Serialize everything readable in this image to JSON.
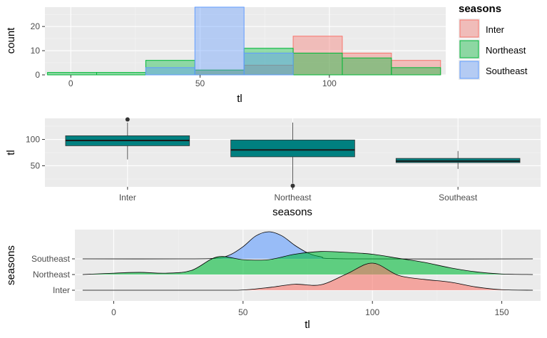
{
  "colors": {
    "Inter": "#F8766D",
    "Northeast": "#00BA38",
    "Southeast": "#619CFF",
    "box_fill": "#008080",
    "panel_bg": "#EBEBEB"
  },
  "chart_data": [
    {
      "type": "histogram",
      "xlabel": "tl",
      "ylabel": "count",
      "xlim": [
        -10,
        145
      ],
      "ylim": [
        0,
        28
      ],
      "x_ticks": [
        "0",
        "50",
        "100"
      ],
      "x_tick_values": [
        0,
        50,
        100
      ],
      "y_ticks": [
        "0",
        "10",
        "20"
      ],
      "y_tick_values": [
        0,
        10,
        20
      ],
      "bin_edges": [
        -9,
        10,
        29,
        48,
        67,
        86,
        105,
        124,
        143
      ],
      "series": [
        {
          "name": "Inter",
          "values": [
            0,
            0,
            0,
            2,
            4,
            16,
            9,
            6
          ]
        },
        {
          "name": "Northeast",
          "values": [
            1,
            1,
            6,
            2,
            11,
            9,
            7,
            3
          ]
        },
        {
          "name": "Southeast",
          "values": [
            0,
            0,
            3,
            28,
            9,
            0,
            0,
            0
          ]
        }
      ],
      "legend": {
        "title": "seasons",
        "items": [
          "Inter",
          "Northeast",
          "Southeast"
        ],
        "position": "right"
      }
    },
    {
      "type": "box",
      "xlabel": "seasons",
      "ylabel": "tl",
      "ylim": [
        10,
        140
      ],
      "y_ticks": [
        "50",
        "100"
      ],
      "y_tick_values": [
        50,
        100
      ],
      "categories": [
        "Inter",
        "Northeast",
        "Southeast"
      ],
      "boxes": [
        {
          "category": "Inter",
          "min": 62,
          "q1": 88,
          "median": 98,
          "q3": 107,
          "max": 132,
          "outliers": [
            138
          ]
        },
        {
          "category": "Northeast",
          "min": 17,
          "q1": 67,
          "median": 80,
          "q3": 99,
          "max": 132,
          "outliers": [
            12
          ]
        },
        {
          "category": "Southeast",
          "min": 44,
          "q1": 56,
          "median": 59,
          "q3": 64,
          "max": 78,
          "outliers": []
        }
      ]
    },
    {
      "type": "ridgeline",
      "xlabel": "tl",
      "ylabel": "seasons",
      "xlim": [
        -15,
        165
      ],
      "x_ticks": [
        "0",
        "50",
        "100",
        "150"
      ],
      "x_tick_values": [
        0,
        50,
        100,
        150
      ],
      "categories": [
        "Inter",
        "Northeast",
        "Southeast"
      ],
      "x_range": [
        -12,
        162
      ],
      "series": [
        {
          "name": "Inter",
          "x": [
            -12,
            40,
            50,
            60,
            70,
            80,
            90,
            100,
            110,
            120,
            130,
            140,
            150,
            162
          ],
          "density": [
            0,
            0,
            0.01,
            0.1,
            0.22,
            0.2,
            0.6,
            1.0,
            0.55,
            0.4,
            0.3,
            0.12,
            0.02,
            0
          ]
        },
        {
          "name": "Northeast",
          "x": [
            -12,
            0,
            10,
            20,
            30,
            40,
            50,
            60,
            70,
            80,
            90,
            100,
            110,
            120,
            130,
            140,
            150,
            162
          ],
          "density": [
            0,
            0.05,
            0.08,
            0.05,
            0.15,
            0.65,
            0.55,
            0.55,
            0.75,
            0.85,
            0.82,
            0.75,
            0.6,
            0.45,
            0.25,
            0.1,
            0.02,
            0
          ]
        },
        {
          "name": "Southeast",
          "x": [
            -12,
            30,
            40,
            45,
            50,
            55,
            60,
            65,
            70,
            75,
            80,
            90,
            162
          ],
          "density": [
            0,
            0,
            0.03,
            0.15,
            0.45,
            0.85,
            1.0,
            0.85,
            0.5,
            0.22,
            0.08,
            0,
            0
          ]
        }
      ]
    }
  ]
}
